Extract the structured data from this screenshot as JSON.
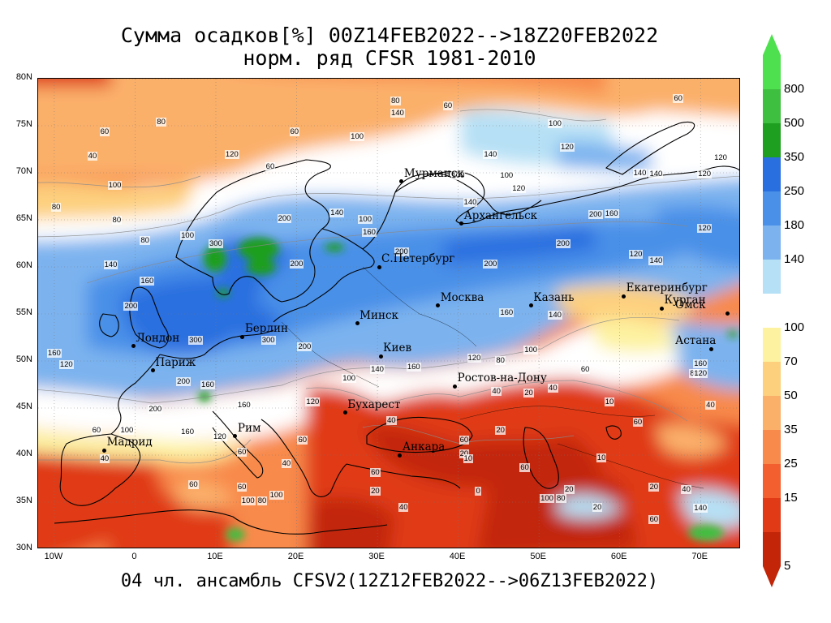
{
  "title_line1": "Сумма осадков[%] 00Z14FEB2022-->18Z20FEB2022",
  "title_line2": "норм. ряд CFSR 1981-2010",
  "footer": "04 чл. ансамбль CFSV2(12Z12FEB2022-->06Z13FEB2022)",
  "lat_labels": [
    "80N",
    "75N",
    "70N",
    "65N",
    "60N",
    "55N",
    "50N",
    "45N",
    "40N",
    "35N",
    "30N"
  ],
  "lon_labels": [
    "10W",
    "0",
    "10E",
    "20E",
    "30E",
    "40E",
    "50E",
    "60E",
    "70E"
  ],
  "cities": [
    {
      "name": "Мурманск",
      "lon": 33.1,
      "lat": 69.0
    },
    {
      "name": "Архангельск",
      "lon": 40.5,
      "lat": 64.5
    },
    {
      "name": "С.Петербург",
      "lon": 30.3,
      "lat": 59.9
    },
    {
      "name": "Москва",
      "lon": 37.6,
      "lat": 55.8
    },
    {
      "name": "Казань",
      "lon": 49.1,
      "lat": 55.8
    },
    {
      "name": "Екатеринбург",
      "lon": 60.6,
      "lat": 56.8
    },
    {
      "name": "Курган",
      "lon": 65.3,
      "lat": 55.5
    },
    {
      "name": "Омск",
      "lon": 73.4,
      "lat": 55.0
    },
    {
      "name": "Астана",
      "lon": 71.4,
      "lat": 51.2
    },
    {
      "name": "Минск",
      "lon": 27.6,
      "lat": 53.9
    },
    {
      "name": "Берлин",
      "lon": 13.4,
      "lat": 52.5
    },
    {
      "name": "Лондон",
      "lon": -0.1,
      "lat": 51.5
    },
    {
      "name": "Париж",
      "lon": 2.3,
      "lat": 48.9
    },
    {
      "name": "Киев",
      "lon": 30.5,
      "lat": 50.4
    },
    {
      "name": "Ростов-на-Дону",
      "lon": 39.7,
      "lat": 47.2
    },
    {
      "name": "Бухарест",
      "lon": 26.1,
      "lat": 44.4
    },
    {
      "name": "Рим",
      "lon": 12.5,
      "lat": 41.9
    },
    {
      "name": "Мадрид",
      "lon": -3.7,
      "lat": 40.4
    },
    {
      "name": "Анкара",
      "lon": 32.9,
      "lat": 39.9
    }
  ],
  "contour_labels": [
    {
      "t": "60",
      "lon": -3.5,
      "lat": 74.2
    },
    {
      "t": "80",
      "lon": 3.5,
      "lat": 75.3
    },
    {
      "t": "40",
      "lon": -5,
      "lat": 71.6
    },
    {
      "t": "120",
      "lon": 12,
      "lat": 71.8
    },
    {
      "t": "60",
      "lon": 17,
      "lat": 70.5
    },
    {
      "t": "100",
      "lon": -2.5,
      "lat": 68.5
    },
    {
      "t": "80",
      "lon": -9.5,
      "lat": 66.2
    },
    {
      "t": "80",
      "lon": -2,
      "lat": 64.8
    },
    {
      "t": "80",
      "lon": 1.5,
      "lat": 62.7
    },
    {
      "t": "100",
      "lon": 6.5,
      "lat": 63.2
    },
    {
      "t": "300",
      "lon": 10,
      "lat": 62.3
    },
    {
      "t": "140",
      "lon": -3,
      "lat": 60.1
    },
    {
      "t": "160",
      "lon": 1.5,
      "lat": 58.4
    },
    {
      "t": "200",
      "lon": -0.5,
      "lat": 55.7
    },
    {
      "t": "160",
      "lon": -10,
      "lat": 50.7
    },
    {
      "t": "120",
      "lon": -8.5,
      "lat": 49.5
    },
    {
      "t": "300",
      "lon": 7.5,
      "lat": 52.1
    },
    {
      "t": "300",
      "lon": 16.5,
      "lat": 52.1
    },
    {
      "t": "200",
      "lon": 21,
      "lat": 51.4
    },
    {
      "t": "200",
      "lon": 6,
      "lat": 47.7
    },
    {
      "t": "160",
      "lon": 9,
      "lat": 47.3
    },
    {
      "t": "200",
      "lon": 2.5,
      "lat": 44.7
    },
    {
      "t": "160",
      "lon": 6.5,
      "lat": 42.3
    },
    {
      "t": "100",
      "lon": -1,
      "lat": 42.5
    },
    {
      "t": "60",
      "lon": -4.5,
      "lat": 42.5
    },
    {
      "t": "40",
      "lon": -3.5,
      "lat": 39.5
    },
    {
      "t": "60",
      "lon": 7.5,
      "lat": 36.7
    },
    {
      "t": "100",
      "lon": 14,
      "lat": 35
    },
    {
      "t": "80",
      "lon": 16,
      "lat": 35
    },
    {
      "t": "100",
      "lon": 17.5,
      "lat": 35.6
    },
    {
      "t": "60",
      "lon": 13.5,
      "lat": 36.5
    },
    {
      "t": "120",
      "lon": 10.5,
      "lat": 41.8
    },
    {
      "t": "60",
      "lon": 13.5,
      "lat": 40.2
    },
    {
      "t": "160",
      "lon": 13.5,
      "lat": 45.2
    },
    {
      "t": "120",
      "lon": 22,
      "lat": 45.5
    },
    {
      "t": "100",
      "lon": 26.5,
      "lat": 48
    },
    {
      "t": "140",
      "lon": 30,
      "lat": 49
    },
    {
      "t": "160",
      "lon": 34.5,
      "lat": 49.2
    },
    {
      "t": "120",
      "lon": 42,
      "lat": 50.2
    },
    {
      "t": "80",
      "lon": 45.5,
      "lat": 49.9
    },
    {
      "t": "100",
      "lon": 49,
      "lat": 51
    },
    {
      "t": "60",
      "lon": 56,
      "lat": 49
    },
    {
      "t": "40",
      "lon": 45,
      "lat": 46.6
    },
    {
      "t": "40",
      "lon": 32,
      "lat": 43.5
    },
    {
      "t": "60",
      "lon": 21,
      "lat": 41.5
    },
    {
      "t": "40",
      "lon": 19,
      "lat": 39
    },
    {
      "t": "60",
      "lon": 30,
      "lat": 38
    },
    {
      "t": "20",
      "lon": 30,
      "lat": 36
    },
    {
      "t": "40",
      "lon": 33.5,
      "lat": 34.3
    },
    {
      "t": "60",
      "lon": 41,
      "lat": 41.5
    },
    {
      "t": "20",
      "lon": 41,
      "lat": 40
    },
    {
      "t": "10",
      "lon": 41.5,
      "lat": 39.5
    },
    {
      "t": "60",
      "lon": 48.5,
      "lat": 38.5
    },
    {
      "t": "0",
      "lon": 43,
      "lat": 36
    },
    {
      "t": "20",
      "lon": 54,
      "lat": 36.2
    },
    {
      "t": "100",
      "lon": 51,
      "lat": 35.3
    },
    {
      "t": "80",
      "lon": 53,
      "lat": 35.3
    },
    {
      "t": "20",
      "lon": 57.5,
      "lat": 34.3
    },
    {
      "t": "10",
      "lon": 58,
      "lat": 39.6
    },
    {
      "t": "20",
      "lon": 64.5,
      "lat": 36.5
    },
    {
      "t": "40",
      "lon": 68.5,
      "lat": 36.2
    },
    {
      "t": "60",
      "lon": 64.5,
      "lat": 33
    },
    {
      "t": "140",
      "lon": 70,
      "lat": 34.2
    },
    {
      "t": "60",
      "lon": 62.5,
      "lat": 43.4
    },
    {
      "t": "40",
      "lon": 71.5,
      "lat": 45.2
    },
    {
      "t": "80",
      "lon": 69.5,
      "lat": 48.5
    },
    {
      "t": "160",
      "lon": 70,
      "lat": 49.6
    },
    {
      "t": "120",
      "lon": 70,
      "lat": 48.5
    },
    {
      "t": "140",
      "lon": 52,
      "lat": 54.7
    },
    {
      "t": "160",
      "lon": 46,
      "lat": 55
    },
    {
      "t": "200",
      "lon": 44,
      "lat": 60.2
    },
    {
      "t": "200",
      "lon": 53,
      "lat": 62.3
    },
    {
      "t": "160",
      "lon": 59,
      "lat": 65.5
    },
    {
      "t": "200",
      "lon": 57,
      "lat": 65.4
    },
    {
      "t": "120",
      "lon": 62,
      "lat": 61.2
    },
    {
      "t": "140",
      "lon": 64.5,
      "lat": 60.5
    },
    {
      "t": "120",
      "lon": 70.5,
      "lat": 64
    },
    {
      "t": "120",
      "lon": 70.5,
      "lat": 69.7
    },
    {
      "t": "140",
      "lon": 64.5,
      "lat": 69.7
    },
    {
      "t": "100",
      "lon": 52,
      "lat": 75.1
    },
    {
      "t": "120",
      "lon": 53.5,
      "lat": 72.6
    },
    {
      "t": "140",
      "lon": 44,
      "lat": 71.8
    },
    {
      "t": "100",
      "lon": 46,
      "lat": 69.6
    },
    {
      "t": "120",
      "lon": 47.5,
      "lat": 68.2
    },
    {
      "t": "60",
      "lon": 39,
      "lat": 77
    },
    {
      "t": "80",
      "lon": 32.5,
      "lat": 77.5
    },
    {
      "t": "140",
      "lon": 32.5,
      "lat": 76.2
    },
    {
      "t": "100",
      "lon": 27.5,
      "lat": 73.7
    },
    {
      "t": "60",
      "lon": 20,
      "lat": 74.2
    },
    {
      "t": "100",
      "lon": 40,
      "lat": 69.6
    },
    {
      "t": "60",
      "lon": 67.5,
      "lat": 77.8
    },
    {
      "t": "120",
      "lon": 72.5,
      "lat": 71.5
    },
    {
      "t": "140",
      "lon": 62.5,
      "lat": 69.8
    },
    {
      "t": "140",
      "lon": 41.5,
      "lat": 66.7
    },
    {
      "t": "100",
      "lon": 28.5,
      "lat": 64.9
    },
    {
      "t": "160",
      "lon": 29,
      "lat": 63.5
    },
    {
      "t": "140",
      "lon": 25,
      "lat": 65.6
    },
    {
      "t": "200",
      "lon": 18.5,
      "lat": 65
    },
    {
      "t": "200",
      "lon": 20,
      "lat": 60.2
    },
    {
      "t": "200",
      "lon": 33,
      "lat": 61.5
    },
    {
      "t": "10",
      "lon": 59,
      "lat": 45.5
    },
    {
      "t": "40",
      "lon": 52,
      "lat": 47
    },
    {
      "t": "20",
      "lon": 49,
      "lat": 46.5
    },
    {
      "t": "20",
      "lon": 45.5,
      "lat": 42.5
    }
  ],
  "colorbar": {
    "items": [
      {
        "color": "#4fe04f",
        "label": "800"
      },
      {
        "color": "#3fbf3f",
        "label": "500"
      },
      {
        "color": "#1f9f1f",
        "label": "350"
      },
      {
        "color": "#2a6fe0",
        "label": "250"
      },
      {
        "color": "#4a90e8",
        "label": "180"
      },
      {
        "color": "#7cb3ef",
        "label": "140"
      },
      {
        "color": "#b6e0f5",
        "label": ""
      },
      {
        "color": "#ffffff",
        "label": "100"
      },
      {
        "color": "#fdf2a0",
        "label": "70"
      },
      {
        "color": "#fdd07e",
        "label": "50"
      },
      {
        "color": "#fbb06a",
        "label": "35"
      },
      {
        "color": "#f88a4c",
        "label": "25"
      },
      {
        "color": "#f35f2e",
        "label": "15"
      },
      {
        "color": "#e03a16",
        "label": ""
      },
      {
        "color": "#c22508",
        "label": "5"
      }
    ]
  }
}
